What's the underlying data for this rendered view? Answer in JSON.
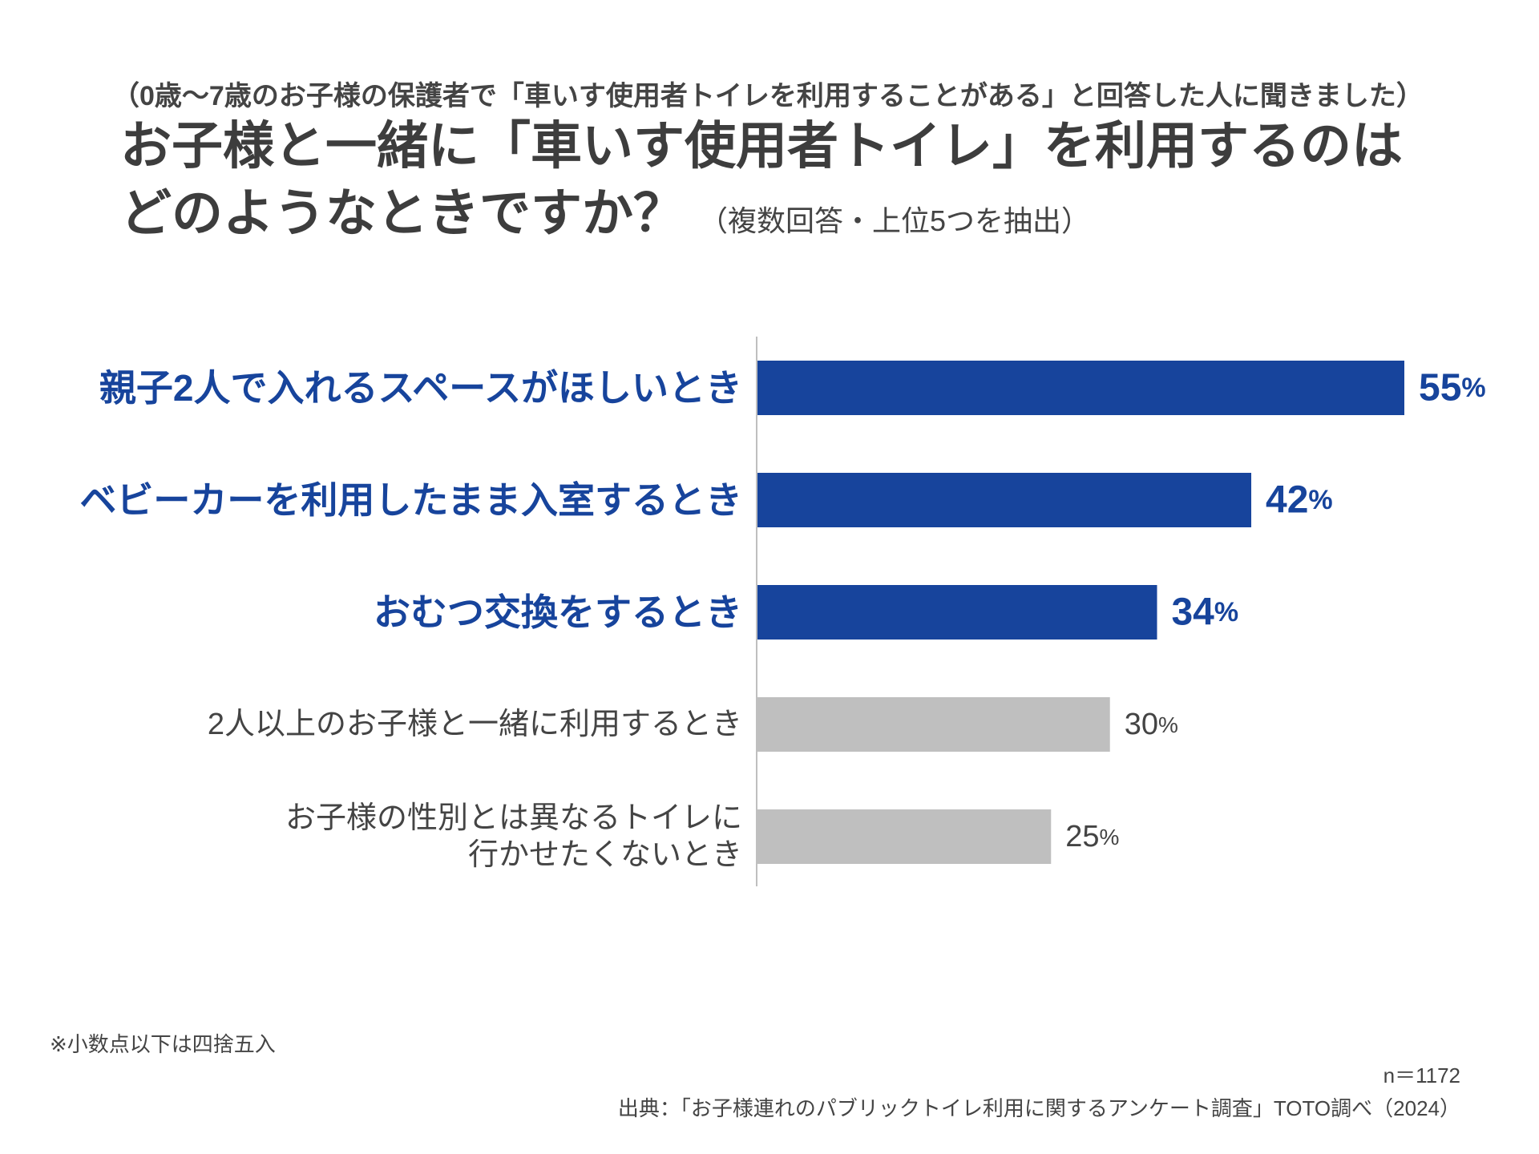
{
  "header": {
    "note": "（0歳～7歳のお子様の保護者で「車いす使用者トイレを利用することがある」と回答した人に聞きました）",
    "title_line1": "お子様と一緒に「車いす使用者トイレ」を利用するのは",
    "title_line2": "どのようなときですか？",
    "subtitle": "（複数回答・上位5つを抽出）"
  },
  "colors": {
    "highlight_bar": "#17449c",
    "other_bar": "#bfbfbf",
    "highlight_text": "#17449c",
    "other_text": "#444444",
    "axis": "#bfbfbf"
  },
  "chart_data": {
    "type": "bar",
    "orientation": "horizontal",
    "categories": [
      [
        "親子2人で入れるスペースがほしいとき"
      ],
      [
        "ベビーカーを利用したまま入室するとき"
      ],
      [
        "おむつ交換をするとき"
      ],
      [
        "2人以上のお子様と一緒に利用するとき"
      ],
      [
        "お子様の性別とは異なるトイレに",
        "行かせたくないとき"
      ]
    ],
    "values": [
      55,
      42,
      34,
      30,
      25
    ],
    "value_labels": [
      "55",
      "42",
      "34",
      "30",
      "25"
    ],
    "unit": "%",
    "highlighted": [
      true,
      true,
      true,
      false,
      false
    ],
    "xlim": [
      0,
      55
    ],
    "grid": false
  },
  "footer": {
    "footnote": "※小数点以下は四捨五入",
    "n": "n＝1172",
    "source": "出典：「お子様連れのパブリックトイレ利用に関するアンケート調査」TOTO調べ（2024）"
  }
}
